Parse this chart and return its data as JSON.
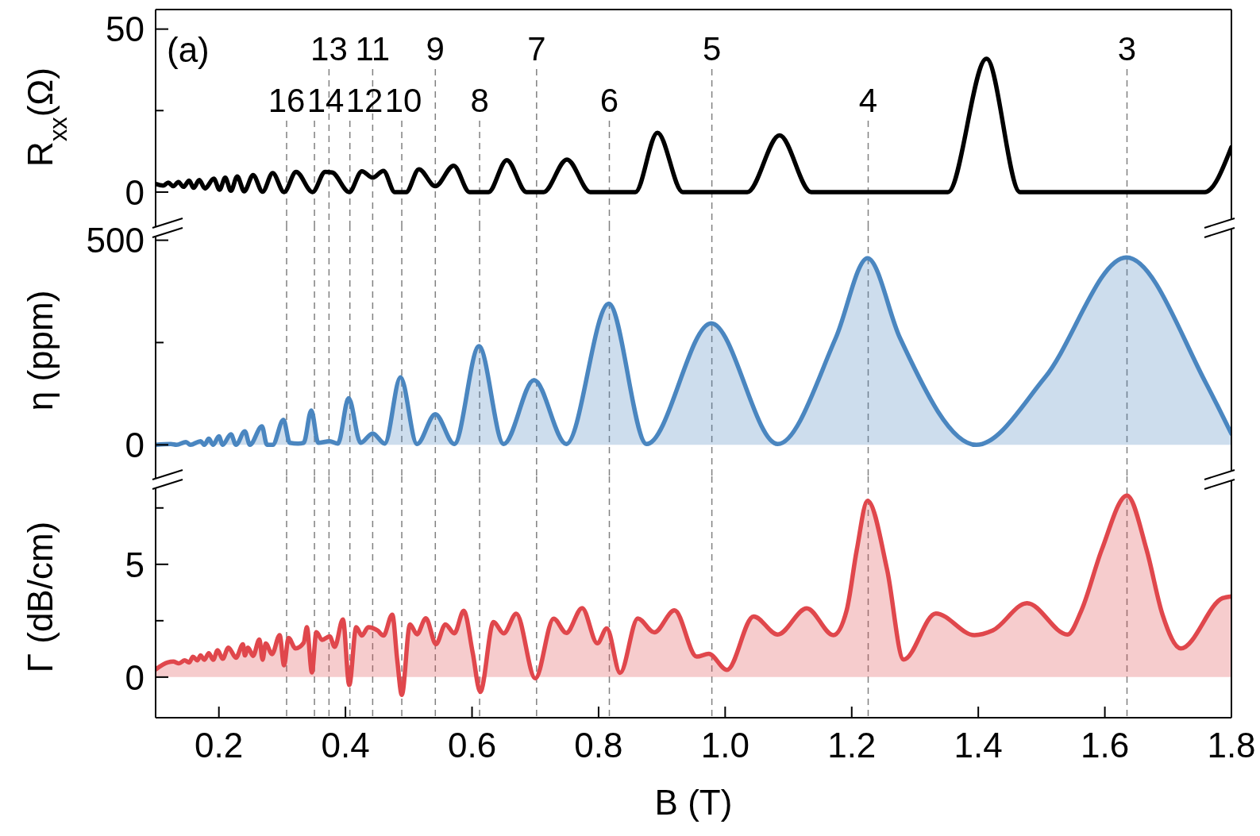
{
  "chart_data": [
    {
      "type": "line",
      "title": "(a)",
      "ylabel": "R$_{xx}$(Ω)",
      "xlim": [
        0.1,
        1.8
      ],
      "ylim": [
        -10,
        56
      ],
      "yticks": [
        0,
        {
          "value": 25,
          "label": null
        },
        50
      ],
      "tick_labels": "y",
      "x": [
        0.1,
        0.112,
        0.12,
        0.128,
        0.136,
        0.144,
        0.153,
        0.16,
        0.169,
        0.178,
        0.192,
        0.201,
        0.21,
        0.219,
        0.229,
        0.24,
        0.254,
        0.269,
        0.285,
        0.303,
        0.322,
        0.348,
        0.368,
        0.379,
        0.406,
        0.426,
        0.443,
        0.46,
        0.478,
        0.496,
        0.516,
        0.542,
        0.571,
        0.596,
        0.626,
        0.655,
        0.686,
        0.713,
        0.75,
        0.787,
        0.858,
        0.893,
        0.933,
        1.035,
        1.086,
        1.136,
        1.352,
        1.413,
        1.466,
        1.758,
        1.8
      ],
      "series": [
        {
          "color": "#000000",
          "values": [
            2.5,
            2.0,
            2.9,
            1.8,
            3.1,
            1.6,
            3.5,
            1.3,
            3.7,
            1.1,
            4.1,
            0.7,
            4.4,
            0.4,
            4.8,
            0.2,
            5.2,
            0.1,
            5.8,
            0,
            6.2,
            0,
            6.2,
            6.0,
            0,
            6.4,
            4.4,
            6.5,
            0,
            0,
            7.0,
            1.8,
            8.1,
            0,
            0,
            9.8,
            0,
            0,
            10.0,
            0,
            0,
            18.2,
            0,
            0,
            17.4,
            0,
            0,
            40.9,
            0,
            0,
            13.8
          ]
        }
      ],
      "annotations": [
        "16",
        "13",
        "14",
        "11",
        "12",
        "9",
        "10",
        "7",
        "8",
        "5",
        "6",
        "3",
        "4"
      ],
      "ref_lines": [
        {
          "axis": "x",
          "value": 0.307,
          "color": "#808080",
          "line_style": "dashed"
        },
        {
          "axis": "x",
          "value": 0.374,
          "color": "#808080",
          "line_style": "dashed"
        },
        {
          "axis": "x",
          "value": 0.351,
          "color": "#808080",
          "line_style": "dashed"
        },
        {
          "axis": "x",
          "value": 0.443,
          "color": "#808080",
          "line_style": "dashed"
        },
        {
          "axis": "x",
          "value": 0.407,
          "color": "#808080",
          "line_style": "dashed"
        },
        {
          "axis": "x",
          "value": 0.542,
          "color": "#808080",
          "line_style": "dashed"
        },
        {
          "axis": "x",
          "value": 0.489,
          "color": "#808080",
          "line_style": "dashed"
        },
        {
          "axis": "x",
          "value": 0.702,
          "color": "#808080",
          "line_style": "dashed"
        },
        {
          "axis": "x",
          "value": 0.612,
          "color": "#808080",
          "line_style": "dashed"
        },
        {
          "axis": "x",
          "value": 0.979,
          "color": "#808080",
          "line_style": "dashed"
        },
        {
          "axis": "x",
          "value": 0.817,
          "color": "#808080",
          "line_style": "dashed"
        },
        {
          "axis": "x",
          "value": 1.635,
          "color": "#808080",
          "line_style": "dashed"
        },
        {
          "axis": "x",
          "value": 1.226,
          "color": "#808080",
          "line_style": "dashed"
        }
      ]
    },
    {
      "type": "area",
      "ylabel": "η (ppm)",
      "xlim": [
        0.1,
        1.8
      ],
      "ylim": [
        -77,
        538
      ],
      "yticks": [
        0,
        {
          "value": 250,
          "label": null
        },
        500
      ],
      "tick_labels": "y",
      "x": [
        0.1,
        0.124,
        0.133,
        0.148,
        0.155,
        0.171,
        0.177,
        0.184,
        0.191,
        0.2,
        0.206,
        0.219,
        0.227,
        0.241,
        0.249,
        0.268,
        0.276,
        0.285,
        0.302,
        0.312,
        0.325,
        0.334,
        0.346,
        0.357,
        0.375,
        0.388,
        0.405,
        0.424,
        0.443,
        0.462,
        0.487,
        0.513,
        0.542,
        0.572,
        0.611,
        0.65,
        0.698,
        0.749,
        0.816,
        0.876,
        0.978,
        1.083,
        1.175,
        1.225,
        1.276,
        1.397,
        1.505,
        1.634,
        1.76,
        1.8
      ],
      "series": [
        {
          "color": "#4a86c0",
          "values": [
            0,
            2,
            0,
            7,
            0,
            9,
            0,
            15,
            0,
            21,
            0,
            26,
            0,
            33,
            0,
            45,
            0,
            0,
            61,
            5,
            3,
            5,
            84,
            5,
            9,
            3,
            114,
            5,
            28,
            3,
            165,
            2,
            75,
            2,
            241,
            2,
            158,
            2,
            345,
            2,
            297,
            2,
            262,
            456,
            262,
            0,
            164,
            458,
            150,
            27
          ]
        }
      ],
      "ref_lines": [
        {
          "axis": "x",
          "value": 0.307,
          "color": "#808080",
          "line_style": "dashed"
        },
        {
          "axis": "x",
          "value": 0.351,
          "color": "#808080",
          "line_style": "dashed"
        },
        {
          "axis": "x",
          "value": 0.374,
          "color": "#808080",
          "line_style": "dashed"
        },
        {
          "axis": "x",
          "value": 0.407,
          "color": "#808080",
          "line_style": "dashed"
        },
        {
          "axis": "x",
          "value": 0.443,
          "color": "#808080",
          "line_style": "dashed"
        },
        {
          "axis": "x",
          "value": 0.489,
          "color": "#808080",
          "line_style": "dashed"
        },
        {
          "axis": "x",
          "value": 0.542,
          "color": "#808080",
          "line_style": "dashed"
        },
        {
          "axis": "x",
          "value": 0.612,
          "color": "#808080",
          "line_style": "dashed"
        },
        {
          "axis": "x",
          "value": 0.702,
          "color": "#808080",
          "line_style": "dashed"
        },
        {
          "axis": "x",
          "value": 0.817,
          "color": "#808080",
          "line_style": "dashed"
        },
        {
          "axis": "x",
          "value": 0.979,
          "color": "#808080",
          "line_style": "dashed"
        },
        {
          "axis": "x",
          "value": 1.226,
          "color": "#808080",
          "line_style": "dashed"
        },
        {
          "axis": "x",
          "value": 1.635,
          "color": "#808080",
          "line_style": "dashed"
        }
      ]
    },
    {
      "type": "area",
      "ylabel": "Γ (dB/cm)",
      "xlabel": "B (T)",
      "xlim": [
        0.1,
        1.8
      ],
      "ylim": [
        -1.8,
        8.9
      ],
      "yticks": [
        0,
        {
          "value": 2.5,
          "label": null
        },
        5,
        {
          "value": 7.5,
          "label": null
        }
      ],
      "xticks": [
        {
          "value": 0.2,
          "label": "0.2"
        },
        {
          "value": 0.4,
          "label": "0.4"
        },
        {
          "value": 0.6,
          "label": "0.6"
        },
        {
          "value": 0.8,
          "label": "0.8"
        },
        {
          "value": 1.0,
          "label": "1.0"
        },
        {
          "value": 1.2,
          "label": "1.2"
        },
        {
          "value": 1.4,
          "label": "1.4"
        },
        {
          "value": 1.6,
          "label": "1.6"
        },
        {
          "value": 1.8,
          "label": "1.8"
        }
      ],
      "x": [
        0.1,
        0.119,
        0.128,
        0.137,
        0.146,
        0.153,
        0.159,
        0.166,
        0.171,
        0.177,
        0.184,
        0.191,
        0.198,
        0.206,
        0.215,
        0.227,
        0.238,
        0.241,
        0.246,
        0.254,
        0.264,
        0.269,
        0.274,
        0.284,
        0.296,
        0.303,
        0.31,
        0.321,
        0.334,
        0.339,
        0.347,
        0.354,
        0.363,
        0.375,
        0.383,
        0.396,
        0.406,
        0.417,
        0.426,
        0.436,
        0.451,
        0.46,
        0.474,
        0.482,
        0.489,
        0.502,
        0.513,
        0.527,
        0.543,
        0.558,
        0.572,
        0.587,
        0.601,
        0.613,
        0.634,
        0.65,
        0.67,
        0.7,
        0.729,
        0.749,
        0.774,
        0.798,
        0.813,
        0.834,
        0.862,
        0.888,
        0.92,
        0.955,
        0.974,
        1.003,
        1.045,
        1.083,
        1.129,
        1.171,
        1.192,
        1.208,
        1.225,
        1.256,
        1.282,
        1.333,
        1.394,
        1.423,
        1.477,
        1.541,
        1.563,
        1.595,
        1.635,
        1.666,
        1.691,
        1.72,
        1.786,
        1.8
      ],
      "series": [
        {
          "color": "#e0474c",
          "values": [
            0.34,
            0.65,
            0.69,
            0.61,
            0.74,
            0.65,
            0.9,
            0.74,
            0.96,
            0.77,
            1.06,
            0.77,
            1.19,
            0.81,
            1.31,
            0.86,
            1.46,
            0.96,
            1.31,
            0.94,
            1.67,
            0.77,
            1.49,
            1.02,
            1.86,
            0.52,
            1.74,
            1.27,
            1.52,
            2.21,
            0.21,
            1.99,
            1.65,
            1.81,
            1.34,
            2.56,
            -0.35,
            2.21,
            1.84,
            2.21,
            2.06,
            1.84,
            2.77,
            0.71,
            -0.79,
            2.34,
            1.9,
            2.61,
            1.46,
            2.34,
            1.94,
            2.94,
            1.09,
            -0.66,
            2.44,
            1.94,
            2.81,
            -0.06,
            2.59,
            1.96,
            3.06,
            1.5,
            2.16,
            0.19,
            2.6,
            1.98,
            2.96,
            0.91,
            1.03,
            0.32,
            2.69,
            1.89,
            3.05,
            1.86,
            2.96,
            5.64,
            7.82,
            4.75,
            0.78,
            2.82,
            1.86,
            2.07,
            3.28,
            1.89,
            2.96,
            5.64,
            8.05,
            5.64,
            2.78,
            1.27,
            3.5,
            3.58
          ]
        }
      ],
      "ref_lines": [
        {
          "axis": "x",
          "value": 0.307,
          "color": "#808080",
          "line_style": "dashed"
        },
        {
          "axis": "x",
          "value": 0.351,
          "color": "#808080",
          "line_style": "dashed"
        },
        {
          "axis": "x",
          "value": 0.374,
          "color": "#808080",
          "line_style": "dashed"
        },
        {
          "axis": "x",
          "value": 0.407,
          "color": "#808080",
          "line_style": "dashed"
        },
        {
          "axis": "x",
          "value": 0.443,
          "color": "#808080",
          "line_style": "dashed"
        },
        {
          "axis": "x",
          "value": 0.489,
          "color": "#808080",
          "line_style": "dashed"
        },
        {
          "axis": "x",
          "value": 0.542,
          "color": "#808080",
          "line_style": "dashed"
        },
        {
          "axis": "x",
          "value": 0.612,
          "color": "#808080",
          "line_style": "dashed"
        },
        {
          "axis": "x",
          "value": 0.702,
          "color": "#808080",
          "line_style": "dashed"
        },
        {
          "axis": "x",
          "value": 0.817,
          "color": "#808080",
          "line_style": "dashed"
        },
        {
          "axis": "x",
          "value": 0.979,
          "color": "#808080",
          "line_style": "dashed"
        },
        {
          "axis": "x",
          "value": 1.226,
          "color": "#808080",
          "line_style": "dashed"
        },
        {
          "axis": "x",
          "value": 1.635,
          "color": "#808080",
          "line_style": "dashed"
        }
      ]
    }
  ]
}
